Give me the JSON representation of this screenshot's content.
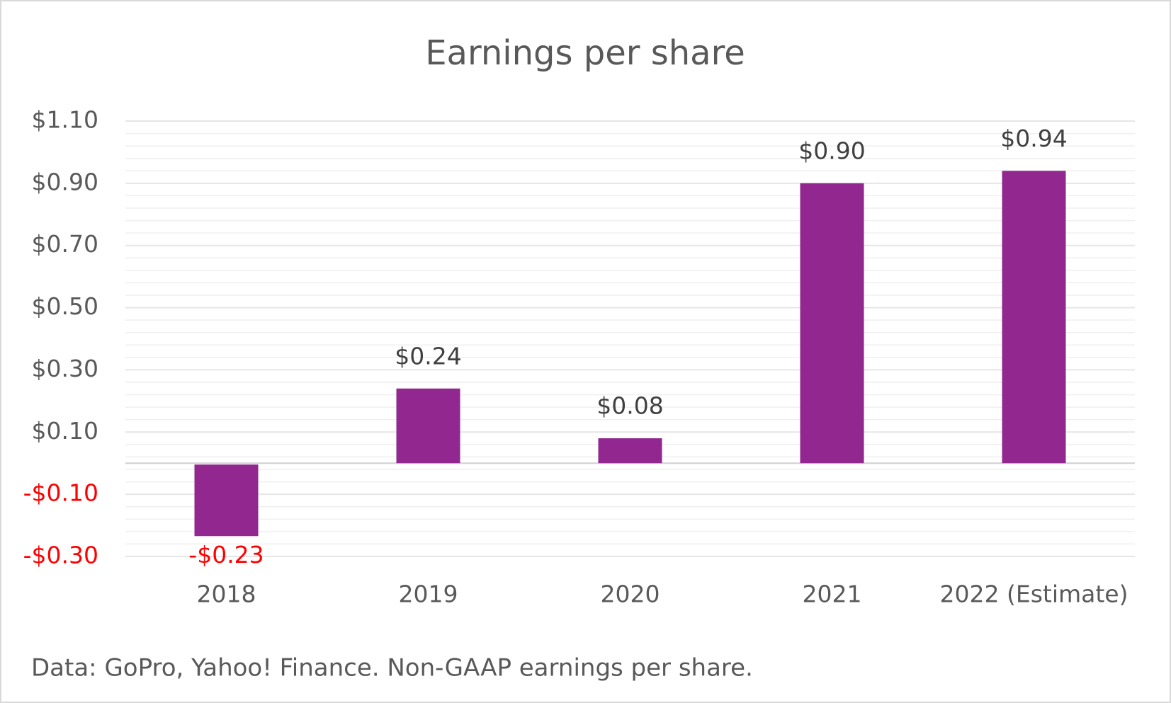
{
  "chart_data": {
    "type": "bar",
    "title": "Earnings per share",
    "categories": [
      "2018",
      "2019",
      "2020",
      "2021",
      "2022 (Estimate)"
    ],
    "values": [
      -0.23,
      0.24,
      0.08,
      0.9,
      0.94
    ],
    "value_labels": [
      "-$0.23",
      "$0.24",
      "$0.08",
      "$0.90",
      "$0.94"
    ],
    "color": "#92278f",
    "negative_label_color": "#ff0000",
    "ylim": [
      -0.3,
      1.1
    ],
    "yticks": [
      {
        "value": -0.3,
        "label": "-$0.30"
      },
      {
        "value": -0.1,
        "label": "-$0.10"
      },
      {
        "value": 0.1,
        "label": "$0.10"
      },
      {
        "value": 0.3,
        "label": "$0.30"
      },
      {
        "value": 0.5,
        "label": "$0.50"
      },
      {
        "value": 0.7,
        "label": "$0.70"
      },
      {
        "value": 0.9,
        "label": "$0.90"
      },
      {
        "value": 1.1,
        "label": "$1.10"
      }
    ],
    "grid": true,
    "source": "Data: GoPro, Yahoo! Finance. Non-GAAP earnings per share."
  }
}
